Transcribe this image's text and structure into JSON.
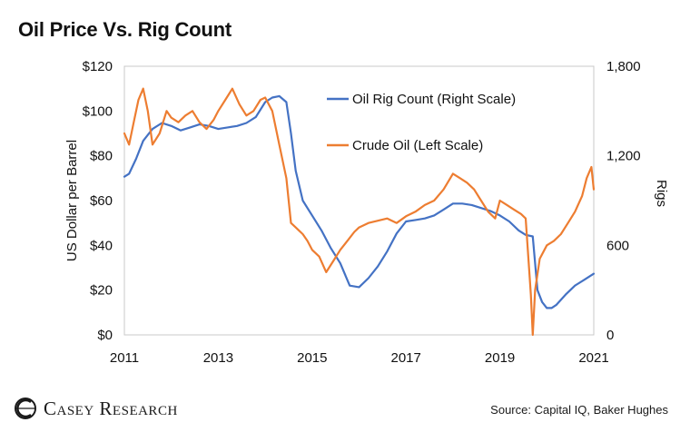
{
  "chart_data": {
    "type": "line",
    "title": "Oil Price Vs. Rig Count",
    "ylabel": "US Dollar per Barrel",
    "y2label": "Rigs",
    "xlim": [
      2011,
      2021
    ],
    "ylim": [
      0,
      120
    ],
    "y2lim": [
      0,
      1800
    ],
    "x_ticks": [
      "2011",
      "2013",
      "2015",
      "2017",
      "2019",
      "2021"
    ],
    "y_ticks": [
      "$0",
      "$20",
      "$40",
      "$60",
      "$80",
      "$100",
      "$120"
    ],
    "y2_ticks": [
      "0",
      "600",
      "1,200",
      "1,800"
    ],
    "grid": false,
    "legend_position": "top-center",
    "series": [
      {
        "name": "Oil Rig Count (Right Scale)",
        "axis": "right",
        "color": "#4472C4",
        "x": [
          2011.0,
          2011.1,
          2011.25,
          2011.4,
          2011.6,
          2011.8,
          2012.0,
          2012.2,
          2012.4,
          2012.6,
          2012.8,
          2013.0,
          2013.2,
          2013.4,
          2013.6,
          2013.8,
          2014.0,
          2014.15,
          2014.3,
          2014.45,
          2014.55,
          2014.65,
          2014.8,
          2015.0,
          2015.2,
          2015.4,
          2015.6,
          2015.8,
          2016.0,
          2016.2,
          2016.4,
          2016.6,
          2016.8,
          2017.0,
          2017.2,
          2017.4,
          2017.6,
          2017.8,
          2018.0,
          2018.2,
          2018.4,
          2018.6,
          2018.8,
          2019.0,
          2019.2,
          2019.4,
          2019.55,
          2019.7,
          2019.8,
          2019.9,
          2020.0,
          2020.1,
          2020.2,
          2020.4,
          2020.6,
          2020.8,
          2021.0
        ],
        "values": [
          1060,
          1080,
          1180,
          1300,
          1380,
          1420,
          1400,
          1370,
          1390,
          1410,
          1400,
          1380,
          1390,
          1400,
          1420,
          1460,
          1560,
          1590,
          1600,
          1560,
          1350,
          1100,
          900,
          800,
          700,
          580,
          480,
          330,
          320,
          380,
          460,
          560,
          680,
          760,
          770,
          780,
          800,
          840,
          880,
          880,
          870,
          850,
          830,
          800,
          760,
          700,
          670,
          660,
          300,
          220,
          180,
          180,
          200,
          270,
          330,
          370,
          410
        ]
      },
      {
        "name": "Crude Oil (Left Scale)",
        "axis": "left",
        "color": "#ED7D31",
        "x": [
          2011.0,
          2011.1,
          2011.2,
          2011.3,
          2011.4,
          2011.5,
          2011.6,
          2011.75,
          2011.9,
          2012.0,
          2012.15,
          2012.3,
          2012.45,
          2012.6,
          2012.75,
          2012.9,
          2013.0,
          2013.15,
          2013.3,
          2013.45,
          2013.6,
          2013.75,
          2013.9,
          2014.0,
          2014.15,
          2014.3,
          2014.45,
          2014.55,
          2014.65,
          2014.8,
          2014.9,
          2015.0,
          2015.15,
          2015.3,
          2015.45,
          2015.6,
          2015.75,
          2015.9,
          2016.0,
          2016.2,
          2016.4,
          2016.6,
          2016.8,
          2017.0,
          2017.2,
          2017.4,
          2017.6,
          2017.8,
          2018.0,
          2018.15,
          2018.3,
          2018.45,
          2018.6,
          2018.75,
          2018.9,
          2019.0,
          2019.15,
          2019.3,
          2019.45,
          2019.55,
          2019.62,
          2019.66,
          2019.7,
          2019.75,
          2019.85,
          2020.0,
          2020.15,
          2020.3,
          2020.45,
          2020.6,
          2020.75,
          2020.85,
          2020.95,
          2021.0
        ],
        "values": [
          90,
          85,
          95,
          105,
          110,
          100,
          85,
          90,
          100,
          97,
          95,
          98,
          100,
          95,
          92,
          96,
          100,
          105,
          110,
          103,
          98,
          100,
          105,
          106,
          100,
          85,
          70,
          50,
          48,
          45,
          42,
          38,
          35,
          28,
          33,
          38,
          42,
          46,
          48,
          50,
          51,
          52,
          50,
          53,
          55,
          58,
          60,
          65,
          72,
          70,
          68,
          65,
          60,
          55,
          52,
          60,
          58,
          56,
          54,
          52,
          30,
          18,
          0,
          20,
          34,
          40,
          42,
          45,
          50,
          55,
          62,
          70,
          75,
          65
        ]
      }
    ]
  },
  "footer": {
    "logo_text": "Casey Research",
    "source": "Source: Capital IQ, Baker Hughes"
  }
}
